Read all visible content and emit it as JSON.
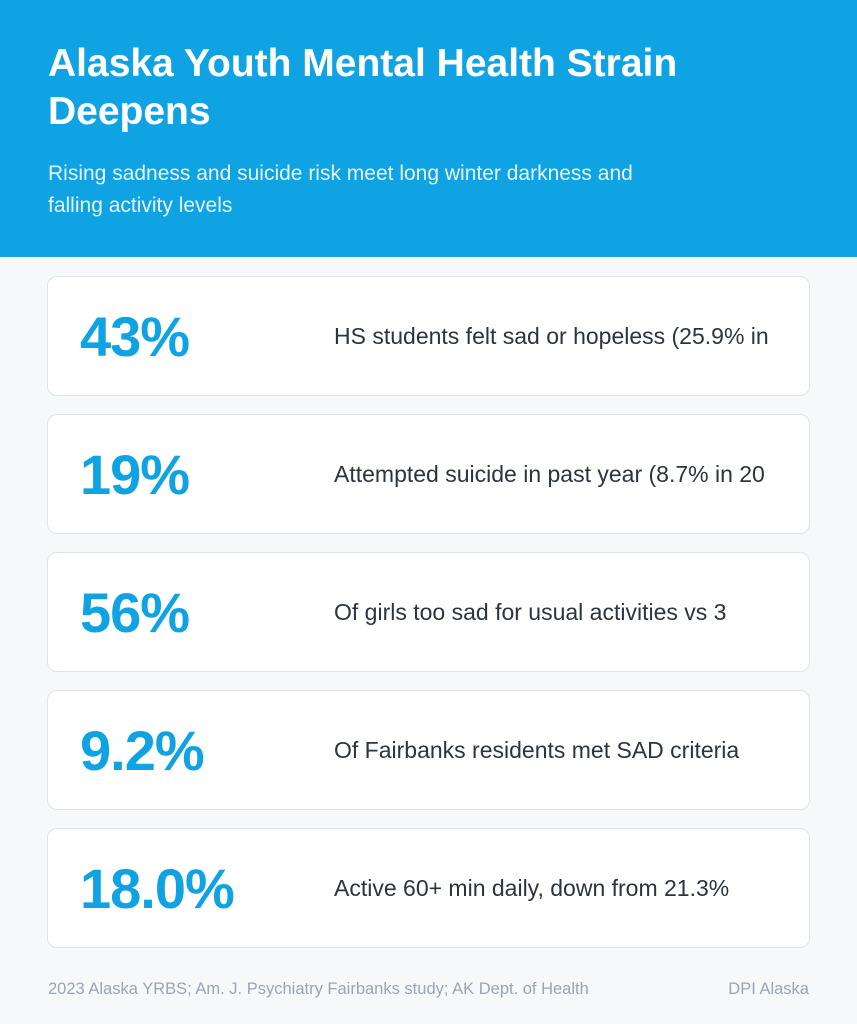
{
  "header": {
    "title": "Alaska Youth Mental Health Strain Deepens",
    "subtitle": "Rising sadness and suicide risk meet long winter darkness and falling activity levels"
  },
  "stats": [
    {
      "value": "43%",
      "description": "HS students felt sad or hopeless (25.9% in"
    },
    {
      "value": "19%",
      "description": "Attempted suicide in past year (8.7% in 20"
    },
    {
      "value": "56%",
      "description": "Of girls too sad for usual activities vs 3"
    },
    {
      "value": "9.2%",
      "description": "Of Fairbanks residents met SAD criteria"
    },
    {
      "value": "18.0%",
      "description": "Active 60+ min daily, down from 21.3%"
    }
  ],
  "footer": {
    "source": "2023 Alaska YRBS; Am. J. Psychiatry Fairbanks study; AK Dept. of Health",
    "brand": "DPI Alaska"
  },
  "colors": {
    "accent": "#10a3e3",
    "text": "#2b3440",
    "muted": "#9aa5b4"
  }
}
